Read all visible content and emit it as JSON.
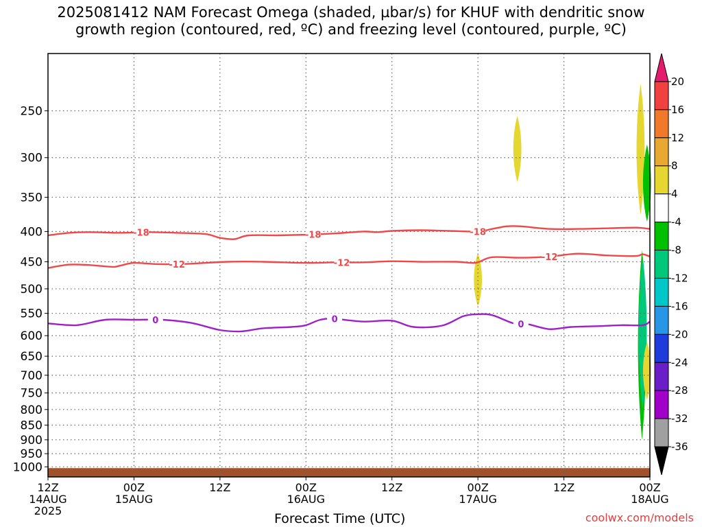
{
  "title": {
    "line1": "2025081412 NAM Forecast Omega (shaded, µbar/s) for KHUF with dendritic snow",
    "line2": "growth region (contoured, red, ºC) and freezing level (contoured, purple, ºC)"
  },
  "credit": "coolwx.com/models",
  "chart_data": {
    "type": "time-height cross section",
    "xlabel": "Forecast Time (UTC)",
    "x_tick_labels": [
      {
        "t": 0,
        "lines": [
          "12Z",
          "14AUG",
          "2025"
        ]
      },
      {
        "t": 12,
        "lines": [
          "00Z",
          "15AUG"
        ]
      },
      {
        "t": 24,
        "lines": [
          "12Z"
        ]
      },
      {
        "t": 36,
        "lines": [
          "00Z",
          "16AUG"
        ]
      },
      {
        "t": 48,
        "lines": [
          "12Z"
        ]
      },
      {
        "t": 60,
        "lines": [
          "00Z",
          "17AUG"
        ]
      },
      {
        "t": 72,
        "lines": [
          "12Z"
        ]
      },
      {
        "t": 84,
        "lines": [
          "00Z",
          "18AUG"
        ]
      }
    ],
    "x_range_hours": [
      0,
      84
    ],
    "y_axis": {
      "unit": "hPa",
      "scale": "log",
      "range": [
        1040,
        200
      ],
      "ticks": [
        250,
        300,
        350,
        400,
        450,
        500,
        550,
        600,
        650,
        700,
        750,
        800,
        850,
        900,
        950,
        1000
      ]
    },
    "grid": true,
    "colorbar": {
      "labels": [
        20,
        16,
        12,
        8,
        4,
        -4,
        -8,
        -12,
        -16,
        -20,
        -24,
        -28,
        -32,
        -36
      ],
      "colors": [
        "#e61a6e",
        "#f04040",
        "#f07a2a",
        "#e8a832",
        "#e6d630",
        "#ffffff",
        "#00c000",
        "#00c87a",
        "#00c8c8",
        "#2896e6",
        "#1e3cdc",
        "#6a1ec8",
        "#a000c8",
        "#a0a0a0",
        "#000000"
      ]
    },
    "contours": [
      {
        "label": "-18",
        "color": "#f04848",
        "t": [
          0,
          3,
          6,
          10,
          14,
          18,
          22,
          24,
          26,
          28,
          32,
          36,
          40,
          44,
          46,
          48,
          52,
          56,
          60,
          62,
          64,
          66,
          70,
          74,
          78,
          82,
          84
        ],
        "p": [
          406,
          402,
          401,
          402,
          401,
          402,
          404,
          410,
          412,
          406,
          406,
          405,
          403,
          400,
          401,
          399,
          398,
          399,
          400,
          396,
          392,
          392,
          396,
          396,
          395,
          394,
          396
        ],
        "label_t": [
          13,
          37,
          60
        ]
      },
      {
        "label": "-12",
        "color": "#f04848",
        "t": [
          0,
          3,
          6,
          9,
          10,
          12,
          15,
          19,
          25,
          30,
          36,
          40,
          44,
          48,
          52,
          57,
          59,
          60,
          62,
          66,
          70,
          74,
          78,
          82,
          83,
          84
        ],
        "p": [
          461,
          455,
          456,
          459,
          457,
          452,
          454,
          454,
          450,
          450,
          452,
          451,
          451,
          449,
          450,
          450,
          452,
          451,
          442,
          443,
          441,
          436,
          439,
          440,
          437,
          441
        ],
        "label_t": [
          18,
          41,
          70
        ]
      },
      {
        "label": "0",
        "color": "#a020c8",
        "t": [
          0,
          4,
          8,
          12,
          16,
          20,
          24,
          27,
          30,
          34,
          36,
          38,
          40,
          44,
          48,
          51,
          55,
          58,
          60,
          62,
          65,
          67,
          70,
          73,
          77,
          80,
          83,
          84
        ],
        "p": [
          572,
          576,
          564,
          564,
          564,
          571,
          587,
          590,
          583,
          580,
          576,
          564,
          562,
          568,
          566,
          580,
          577,
          556,
          552,
          554,
          572,
          574,
          585,
          580,
          578,
          576,
          576,
          568
        ],
        "label_t": [
          15,
          40,
          66
        ]
      }
    ],
    "shaded_regions": [
      {
        "t_center": 65.5,
        "p_top": 255,
        "p_bottom": 330,
        "omega_class": "4 to 8",
        "color": "#e6d630"
      },
      {
        "t_center": 60,
        "p_top": 435,
        "p_bottom": 535,
        "omega_class": "4 to 8",
        "color": "#e6d630"
      },
      {
        "t_center": 82.7,
        "p_top": 225,
        "p_bottom": 375,
        "omega_class": "4 to 8",
        "color": "#e6d630"
      },
      {
        "t_center": 83.6,
        "p_top": 285,
        "p_bottom": 385,
        "omega_class": "-8 to -4",
        "color": "#00c000"
      },
      {
        "t_center": 82.9,
        "p_top": 430,
        "p_bottom": 900,
        "omega_class": "-8 to -4",
        "color": "#00c000"
      },
      {
        "t_center": 83.0,
        "p_top": 440,
        "p_bottom": 800,
        "omega_class": "-12 to -8",
        "color": "#00c87a"
      },
      {
        "t_center": 83.6,
        "p_top": 615,
        "p_bottom": 770,
        "omega_class": "4 to 8",
        "color": "#e6d630"
      }
    ],
    "terrain": {
      "color": "#a0522d",
      "surface_p": 1005
    }
  }
}
